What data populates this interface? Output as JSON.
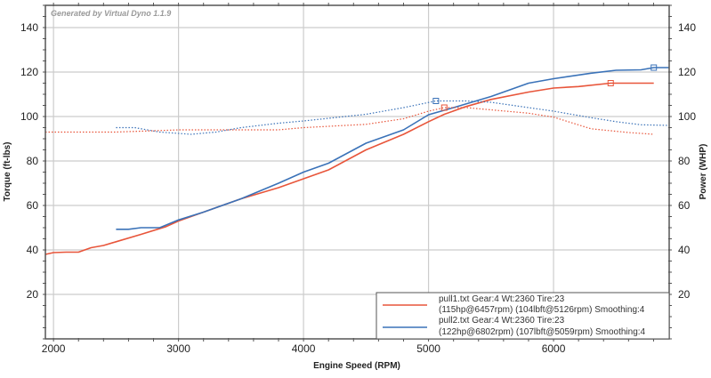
{
  "chart_data": {
    "type": "line",
    "watermark": "Generated by Virtual Dyno 1.1.9",
    "xlabel": "Engine Speed (RPM)",
    "ylabel_left": "Torque (ft-lbs)",
    "ylabel_right": "Power (WHP)",
    "xlim": [
      1935,
      6925
    ],
    "ylim": [
      0,
      150
    ],
    "xticks": [
      2000,
      3000,
      4000,
      5000,
      6000
    ],
    "yticks": [
      20,
      40,
      60,
      80,
      100,
      120,
      140
    ],
    "grid": true,
    "legend_position": "bottom-right",
    "colors": {
      "pull1": "#e8553a",
      "pull2": "#3a72b8"
    },
    "legend": [
      {
        "line1": "pull1.txt Gear:4 Wt:2360 Tire:23",
        "line2": "(115hp@6457rpm) (104lbft@5126rpm) Smoothing:4",
        "color": "#e8553a"
      },
      {
        "line1": "pull2.txt Gear:4 Wt:2360 Tire:23",
        "line2": "(122hp@6802rpm) (107lbft@5059rpm) Smoothing:4",
        "color": "#3a72b8"
      }
    ],
    "series": [
      {
        "run": "pull1",
        "kind": "torque",
        "style": "solid",
        "color": "#e8553a",
        "points": [
          [
            1935,
            38
          ],
          [
            2000,
            38.8
          ],
          [
            2100,
            39
          ],
          [
            2200,
            39
          ],
          [
            2300,
            41
          ],
          [
            2400,
            42
          ],
          [
            2500,
            43.7
          ],
          [
            2700,
            47
          ],
          [
            2900,
            50.5
          ],
          [
            3000,
            53
          ],
          [
            3200,
            57
          ],
          [
            3500,
            63
          ],
          [
            3800,
            68
          ],
          [
            4000,
            72
          ],
          [
            4200,
            76
          ],
          [
            4500,
            85
          ],
          [
            4800,
            92
          ],
          [
            5000,
            97.7
          ],
          [
            5126,
            101
          ],
          [
            5300,
            104.5
          ],
          [
            5500,
            107.7
          ],
          [
            5800,
            111
          ],
          [
            6000,
            112.8
          ],
          [
            6200,
            113.5
          ],
          [
            6457,
            115
          ],
          [
            6802,
            115
          ]
        ]
      },
      {
        "run": "pull2",
        "kind": "torque",
        "style": "solid",
        "color": "#3a72b8",
        "points": [
          [
            2500,
            49.3
          ],
          [
            2600,
            49.3
          ],
          [
            2700,
            50
          ],
          [
            2850,
            50
          ],
          [
            3000,
            53.5
          ],
          [
            3200,
            57
          ],
          [
            3500,
            63
          ],
          [
            3800,
            70
          ],
          [
            4000,
            75
          ],
          [
            4200,
            79
          ],
          [
            4500,
            88
          ],
          [
            4800,
            94
          ],
          [
            5000,
            100.8
          ],
          [
            5200,
            104
          ],
          [
            5500,
            109
          ],
          [
            5800,
            115
          ],
          [
            6000,
            117
          ],
          [
            6300,
            119.5
          ],
          [
            6500,
            120.8
          ],
          [
            6700,
            121
          ],
          [
            6802,
            122
          ],
          [
            6925,
            122
          ]
        ]
      },
      {
        "run": "pull1",
        "kind": "power",
        "style": "dotted",
        "color": "#e8553a",
        "points": [
          [
            1935,
            93
          ],
          [
            2500,
            93
          ],
          [
            3000,
            94
          ],
          [
            3500,
            94
          ],
          [
            3800,
            94
          ],
          [
            4000,
            95
          ],
          [
            4500,
            96.5
          ],
          [
            4800,
            99
          ],
          [
            5000,
            102.4
          ],
          [
            5126,
            104
          ],
          [
            5300,
            104
          ],
          [
            5500,
            103
          ],
          [
            5800,
            101.5
          ],
          [
            6000,
            99.7
          ],
          [
            6300,
            94.5
          ],
          [
            6600,
            92.8
          ],
          [
            6802,
            92
          ]
        ]
      },
      {
        "run": "pull2",
        "kind": "power",
        "style": "dotted",
        "color": "#3a72b8",
        "points": [
          [
            2500,
            95
          ],
          [
            2650,
            95
          ],
          [
            2850,
            93
          ],
          [
            3100,
            92
          ],
          [
            3300,
            93
          ],
          [
            3500,
            95
          ],
          [
            3800,
            97
          ],
          [
            4000,
            98
          ],
          [
            4500,
            101
          ],
          [
            4800,
            104
          ],
          [
            5059,
            107
          ],
          [
            5300,
            107
          ],
          [
            5500,
            106.4
          ],
          [
            5800,
            104
          ],
          [
            6000,
            102.4
          ],
          [
            6300,
            99.5
          ],
          [
            6500,
            97.7
          ],
          [
            6700,
            96.3
          ],
          [
            6925,
            96
          ]
        ]
      }
    ],
    "peak_markers": [
      {
        "run": "pull1",
        "rpm": 5126,
        "value": 104,
        "color": "#e8553a"
      },
      {
        "run": "pull1",
        "rpm": 6457,
        "value": 115,
        "color": "#e8553a"
      },
      {
        "run": "pull2",
        "rpm": 5059,
        "value": 107,
        "color": "#3a72b8"
      },
      {
        "run": "pull2",
        "rpm": 6802,
        "value": 122,
        "color": "#3a72b8"
      }
    ]
  }
}
